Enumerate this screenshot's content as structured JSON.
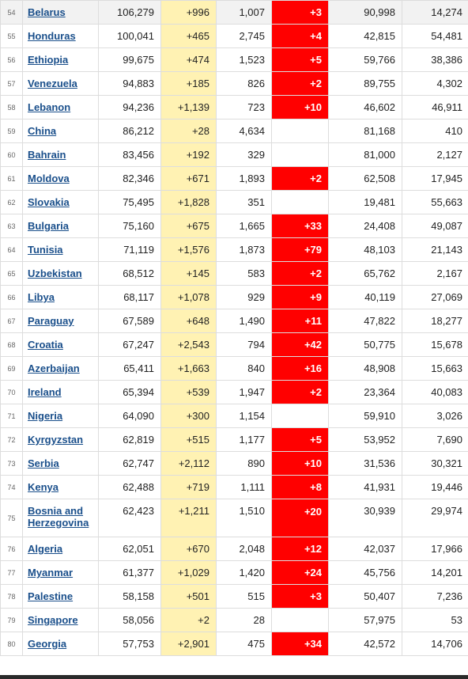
{
  "rows": [
    {
      "rank": "54",
      "country": "Belarus",
      "total_cases": "106,279",
      "new_cases": "+996",
      "total_deaths": "1,007",
      "new_deaths": "+3",
      "recovered": "90,998",
      "active": "14,274"
    },
    {
      "rank": "55",
      "country": "Honduras",
      "total_cases": "100,041",
      "new_cases": "+465",
      "total_deaths": "2,745",
      "new_deaths": "+4",
      "recovered": "42,815",
      "active": "54,481"
    },
    {
      "rank": "56",
      "country": "Ethiopia",
      "total_cases": "99,675",
      "new_cases": "+474",
      "total_deaths": "1,523",
      "new_deaths": "+5",
      "recovered": "59,766",
      "active": "38,386"
    },
    {
      "rank": "57",
      "country": "Venezuela",
      "total_cases": "94,883",
      "new_cases": "+185",
      "total_deaths": "826",
      "new_deaths": "+2",
      "recovered": "89,755",
      "active": "4,302"
    },
    {
      "rank": "58",
      "country": "Lebanon",
      "total_cases": "94,236",
      "new_cases": "+1,139",
      "total_deaths": "723",
      "new_deaths": "+10",
      "recovered": "46,602",
      "active": "46,911"
    },
    {
      "rank": "59",
      "country": "China",
      "total_cases": "86,212",
      "new_cases": "+28",
      "total_deaths": "4,634",
      "new_deaths": "",
      "recovered": "81,168",
      "active": "410"
    },
    {
      "rank": "60",
      "country": "Bahrain",
      "total_cases": "83,456",
      "new_cases": "+192",
      "total_deaths": "329",
      "new_deaths": "",
      "recovered": "81,000",
      "active": "2,127"
    },
    {
      "rank": "61",
      "country": "Moldova",
      "total_cases": "82,346",
      "new_cases": "+671",
      "total_deaths": "1,893",
      "new_deaths": "+2",
      "recovered": "62,508",
      "active": "17,945"
    },
    {
      "rank": "62",
      "country": "Slovakia",
      "total_cases": "75,495",
      "new_cases": "+1,828",
      "total_deaths": "351",
      "new_deaths": "",
      "recovered": "19,481",
      "active": "55,663"
    },
    {
      "rank": "63",
      "country": "Bulgaria",
      "total_cases": "75,160",
      "new_cases": "+675",
      "total_deaths": "1,665",
      "new_deaths": "+33",
      "recovered": "24,408",
      "active": "49,087"
    },
    {
      "rank": "64",
      "country": "Tunisia",
      "total_cases": "71,119",
      "new_cases": "+1,576",
      "total_deaths": "1,873",
      "new_deaths": "+79",
      "recovered": "48,103",
      "active": "21,143"
    },
    {
      "rank": "65",
      "country": "Uzbekistan",
      "total_cases": "68,512",
      "new_cases": "+145",
      "total_deaths": "583",
      "new_deaths": "+2",
      "recovered": "65,762",
      "active": "2,167"
    },
    {
      "rank": "66",
      "country": "Libya",
      "total_cases": "68,117",
      "new_cases": "+1,078",
      "total_deaths": "929",
      "new_deaths": "+9",
      "recovered": "40,119",
      "active": "27,069"
    },
    {
      "rank": "67",
      "country": "Paraguay",
      "total_cases": "67,589",
      "new_cases": "+648",
      "total_deaths": "1,490",
      "new_deaths": "+11",
      "recovered": "47,822",
      "active": "18,277"
    },
    {
      "rank": "68",
      "country": "Croatia",
      "total_cases": "67,247",
      "new_cases": "+2,543",
      "total_deaths": "794",
      "new_deaths": "+42",
      "recovered": "50,775",
      "active": "15,678"
    },
    {
      "rank": "69",
      "country": "Azerbaijan",
      "total_cases": "65,411",
      "new_cases": "+1,663",
      "total_deaths": "840",
      "new_deaths": "+16",
      "recovered": "48,908",
      "active": "15,663"
    },
    {
      "rank": "70",
      "country": "Ireland",
      "total_cases": "65,394",
      "new_cases": "+539",
      "total_deaths": "1,947",
      "new_deaths": "+2",
      "recovered": "23,364",
      "active": "40,083"
    },
    {
      "rank": "71",
      "country": "Nigeria",
      "total_cases": "64,090",
      "new_cases": "+300",
      "total_deaths": "1,154",
      "new_deaths": "",
      "recovered": "59,910",
      "active": "3,026"
    },
    {
      "rank": "72",
      "country": "Kyrgyzstan",
      "total_cases": "62,819",
      "new_cases": "+515",
      "total_deaths": "1,177",
      "new_deaths": "+5",
      "recovered": "53,952",
      "active": "7,690"
    },
    {
      "rank": "73",
      "country": "Serbia",
      "total_cases": "62,747",
      "new_cases": "+2,112",
      "total_deaths": "890",
      "new_deaths": "+10",
      "recovered": "31,536",
      "active": "30,321"
    },
    {
      "rank": "74",
      "country": "Kenya",
      "total_cases": "62,488",
      "new_cases": "+719",
      "total_deaths": "1,111",
      "new_deaths": "+8",
      "recovered": "41,931",
      "active": "19,446"
    },
    {
      "rank": "75",
      "country": "Bosnia and Herzegovina",
      "total_cases": "62,423",
      "new_cases": "+1,211",
      "total_deaths": "1,510",
      "new_deaths": "+20",
      "recovered": "30,939",
      "active": "29,974"
    },
    {
      "rank": "76",
      "country": "Algeria",
      "total_cases": "62,051",
      "new_cases": "+670",
      "total_deaths": "2,048",
      "new_deaths": "+12",
      "recovered": "42,037",
      "active": "17,966"
    },
    {
      "rank": "77",
      "country": "Myanmar",
      "total_cases": "61,377",
      "new_cases": "+1,029",
      "total_deaths": "1,420",
      "new_deaths": "+24",
      "recovered": "45,756",
      "active": "14,201"
    },
    {
      "rank": "78",
      "country": "Palestine",
      "total_cases": "58,158",
      "new_cases": "+501",
      "total_deaths": "515",
      "new_deaths": "+3",
      "recovered": "50,407",
      "active": "7,236"
    },
    {
      "rank": "79",
      "country": "Singapore",
      "total_cases": "58,056",
      "new_cases": "+2",
      "total_deaths": "28",
      "new_deaths": "",
      "recovered": "57,975",
      "active": "53"
    },
    {
      "rank": "80",
      "country": "Georgia",
      "total_cases": "57,753",
      "new_cases": "+2,901",
      "total_deaths": "475",
      "new_deaths": "+34",
      "recovered": "42,572",
      "active": "14,706"
    }
  ],
  "colors": {
    "new_cases_bg": "#fff2b3",
    "new_deaths_bg": "#ff0000",
    "link": "#1a4f8b",
    "highlight_row": "#f2f2f2"
  }
}
